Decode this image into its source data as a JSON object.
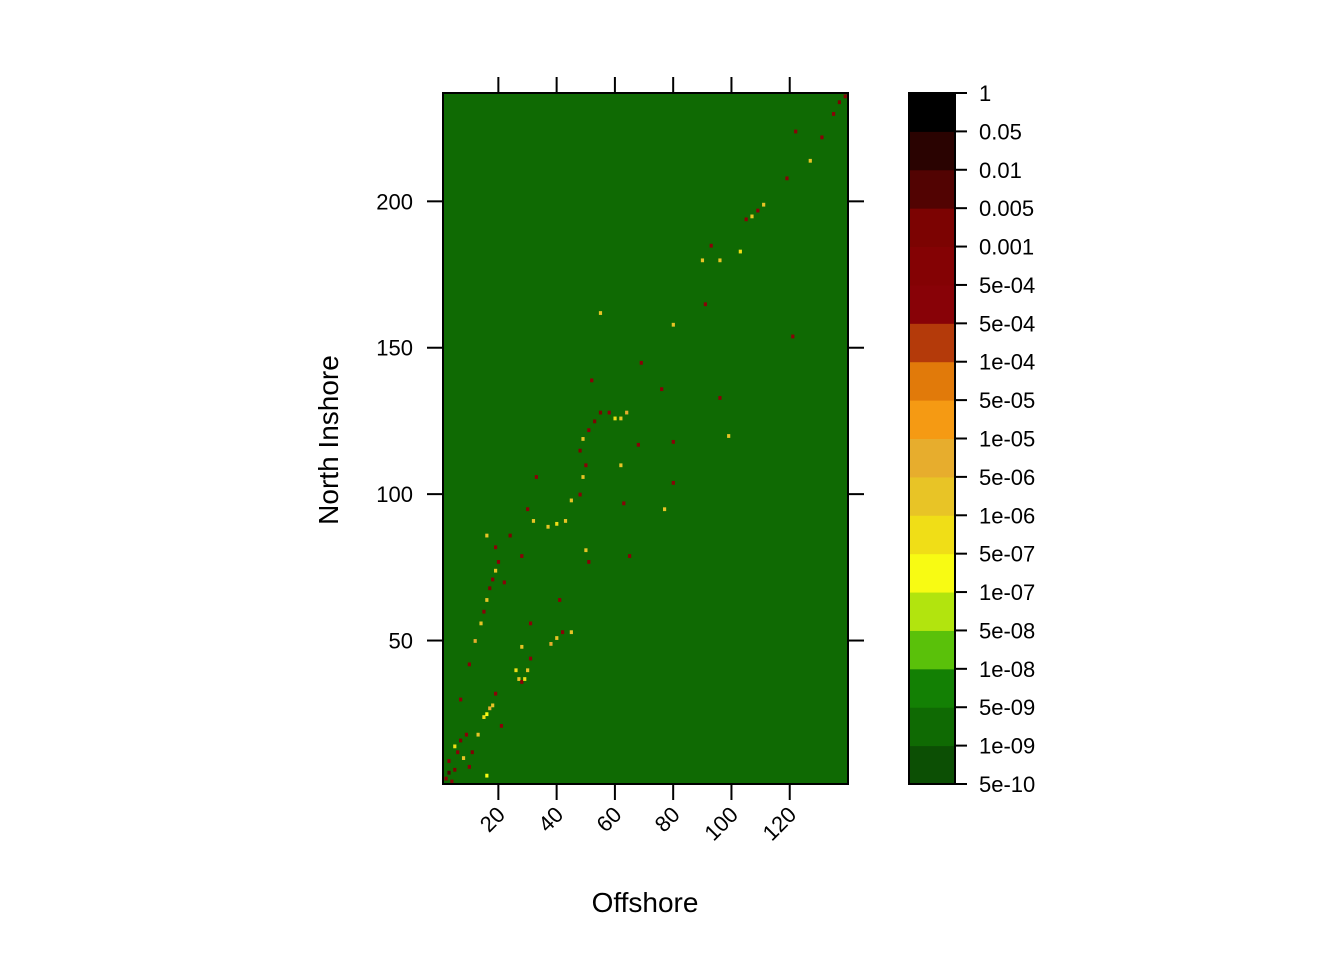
{
  "chart_data": {
    "type": "heatmap",
    "title": "",
    "xlabel": "Offshore",
    "ylabel": "North Inshore",
    "xlim": [
      1,
      140
    ],
    "ylim": [
      1,
      237
    ],
    "x_ticks": [
      20,
      40,
      60,
      80,
      100,
      120
    ],
    "x_tick_labels": [
      "20",
      "40",
      "60",
      "80",
      "100",
      "120"
    ],
    "y_ticks": [
      50,
      100,
      150,
      200
    ],
    "y_tick_labels": [
      "50",
      "100",
      "150",
      "200"
    ],
    "background_value": "1e-09",
    "colorbar": {
      "placement": "right",
      "bins": [
        {
          "color": "#0c4f04"
        },
        {
          "color": "#0f6a03"
        },
        {
          "color": "#138004"
        },
        {
          "color": "#5ac10a"
        },
        {
          "color": "#b2e40e"
        },
        {
          "color": "#f8fb13"
        },
        {
          "color": "#f0de17"
        },
        {
          "color": "#e8c426"
        },
        {
          "color": "#e7ad2d"
        },
        {
          "color": "#f59a13"
        },
        {
          "color": "#e17a0a"
        },
        {
          "color": "#b43a0a"
        },
        {
          "color": "#880207"
        },
        {
          "color": "#840204"
        },
        {
          "color": "#7c0302"
        },
        {
          "color": "#520302"
        },
        {
          "color": "#2a0301"
        },
        {
          "color": "#000000"
        }
      ],
      "labels": [
        "5e-10",
        "1e-09",
        "5e-09",
        "1e-08",
        "5e-08",
        "1e-07",
        "5e-07",
        "1e-06",
        "5e-06",
        "1e-05",
        "5e-05",
        "1e-04",
        "5e-04",
        "5e-04",
        "0.001",
        "0.005",
        "0.01",
        "0.05",
        "1"
      ]
    },
    "hotspots": [
      {
        "x": 2,
        "y": 3,
        "value": "5e-04"
      },
      {
        "x": 3,
        "y": 5,
        "value": "0.005"
      },
      {
        "x": 4,
        "y": 2,
        "value": "5e-04"
      },
      {
        "x": 5,
        "y": 6,
        "value": "0.001"
      },
      {
        "x": 3,
        "y": 9,
        "value": "5e-04"
      },
      {
        "x": 6,
        "y": 12,
        "value": "5e-04"
      },
      {
        "x": 7,
        "y": 16,
        "value": "0.001"
      },
      {
        "x": 5,
        "y": 14,
        "value": "5e-07"
      },
      {
        "x": 9,
        "y": 18,
        "value": "5e-04"
      },
      {
        "x": 8,
        "y": 10,
        "value": "1e-06"
      },
      {
        "x": 10,
        "y": 7,
        "value": "5e-04"
      },
      {
        "x": 11,
        "y": 12,
        "value": "0.001"
      },
      {
        "x": 7,
        "y": 30,
        "value": "5e-04"
      },
      {
        "x": 13,
        "y": 18,
        "value": "1e-06"
      },
      {
        "x": 15,
        "y": 24,
        "value": "5e-07"
      },
      {
        "x": 16,
        "y": 25,
        "value": "1e-07"
      },
      {
        "x": 17,
        "y": 27,
        "value": "5e-06"
      },
      {
        "x": 18,
        "y": 28,
        "value": "1e-06"
      },
      {
        "x": 19,
        "y": 32,
        "value": "5e-04"
      },
      {
        "x": 16,
        "y": 4,
        "value": "1e-07"
      },
      {
        "x": 21,
        "y": 21,
        "value": "5e-04"
      },
      {
        "x": 10,
        "y": 42,
        "value": "5e-04"
      },
      {
        "x": 12,
        "y": 50,
        "value": "5e-06"
      },
      {
        "x": 14,
        "y": 56,
        "value": "1e-06"
      },
      {
        "x": 15,
        "y": 60,
        "value": "5e-04"
      },
      {
        "x": 16,
        "y": 64,
        "value": "1e-06"
      },
      {
        "x": 17,
        "y": 68,
        "value": "0.001"
      },
      {
        "x": 18,
        "y": 71,
        "value": "5e-04"
      },
      {
        "x": 19,
        "y": 74,
        "value": "1e-06"
      },
      {
        "x": 20,
        "y": 77,
        "value": "5e-04"
      },
      {
        "x": 22,
        "y": 70,
        "value": "5e-04"
      },
      {
        "x": 16,
        "y": 86,
        "value": "1e-06"
      },
      {
        "x": 19,
        "y": 82,
        "value": "5e-04"
      },
      {
        "x": 24,
        "y": 86,
        "value": "0.001"
      },
      {
        "x": 26,
        "y": 40,
        "value": "5e-07"
      },
      {
        "x": 27,
        "y": 37,
        "value": "1e-06"
      },
      {
        "x": 28,
        "y": 36,
        "value": "5e-04"
      },
      {
        "x": 29,
        "y": 37,
        "value": "5e-07"
      },
      {
        "x": 30,
        "y": 40,
        "value": "1e-06"
      },
      {
        "x": 31,
        "y": 44,
        "value": "5e-04"
      },
      {
        "x": 28,
        "y": 48,
        "value": "1e-06"
      },
      {
        "x": 31,
        "y": 56,
        "value": "5e-04"
      },
      {
        "x": 28,
        "y": 79,
        "value": "5e-04"
      },
      {
        "x": 30,
        "y": 95,
        "value": "5e-04"
      },
      {
        "x": 32,
        "y": 91,
        "value": "1e-06"
      },
      {
        "x": 33,
        "y": 106,
        "value": "5e-04"
      },
      {
        "x": 37,
        "y": 89,
        "value": "1e-06"
      },
      {
        "x": 40,
        "y": 90,
        "value": "5e-07"
      },
      {
        "x": 43,
        "y": 91,
        "value": "1e-06"
      },
      {
        "x": 38,
        "y": 49,
        "value": "5e-06"
      },
      {
        "x": 40,
        "y": 51,
        "value": "1e-06"
      },
      {
        "x": 42,
        "y": 53,
        "value": "5e-04"
      },
      {
        "x": 45,
        "y": 53,
        "value": "1e-06"
      },
      {
        "x": 41,
        "y": 64,
        "value": "5e-04"
      },
      {
        "x": 45,
        "y": 98,
        "value": "1e-06"
      },
      {
        "x": 48,
        "y": 100,
        "value": "5e-04"
      },
      {
        "x": 50,
        "y": 81,
        "value": "1e-06"
      },
      {
        "x": 51,
        "y": 77,
        "value": "5e-04"
      },
      {
        "x": 49,
        "y": 106,
        "value": "1e-06"
      },
      {
        "x": 50,
        "y": 110,
        "value": "5e-04"
      },
      {
        "x": 48,
        "y": 115,
        "value": "0.001"
      },
      {
        "x": 49,
        "y": 119,
        "value": "1e-06"
      },
      {
        "x": 51,
        "y": 122,
        "value": "5e-04"
      },
      {
        "x": 53,
        "y": 125,
        "value": "0.001"
      },
      {
        "x": 55,
        "y": 128,
        "value": "0.001"
      },
      {
        "x": 58,
        "y": 128,
        "value": "5e-04"
      },
      {
        "x": 60,
        "y": 126,
        "value": "5e-07"
      },
      {
        "x": 62,
        "y": 126,
        "value": "1e-06"
      },
      {
        "x": 64,
        "y": 128,
        "value": "5e-06"
      },
      {
        "x": 52,
        "y": 139,
        "value": "5e-04"
      },
      {
        "x": 62,
        "y": 110,
        "value": "1e-06"
      },
      {
        "x": 68,
        "y": 117,
        "value": "5e-04"
      },
      {
        "x": 63,
        "y": 97,
        "value": "5e-04"
      },
      {
        "x": 65,
        "y": 79,
        "value": "5e-04"
      },
      {
        "x": 55,
        "y": 162,
        "value": "1e-06"
      },
      {
        "x": 69,
        "y": 145,
        "value": "5e-04"
      },
      {
        "x": 76,
        "y": 136,
        "value": "5e-04"
      },
      {
        "x": 80,
        "y": 158,
        "value": "1e-06"
      },
      {
        "x": 80,
        "y": 118,
        "value": "5e-04"
      },
      {
        "x": 80,
        "y": 104,
        "value": "5e-04"
      },
      {
        "x": 77,
        "y": 95,
        "value": "1e-06"
      },
      {
        "x": 90,
        "y": 180,
        "value": "1e-06"
      },
      {
        "x": 93,
        "y": 185,
        "value": "5e-04"
      },
      {
        "x": 96,
        "y": 180,
        "value": "1e-06"
      },
      {
        "x": 91,
        "y": 165,
        "value": "5e-04"
      },
      {
        "x": 96,
        "y": 133,
        "value": "5e-04"
      },
      {
        "x": 99,
        "y": 120,
        "value": "1e-06"
      },
      {
        "x": 103,
        "y": 183,
        "value": "5e-07"
      },
      {
        "x": 105,
        "y": 194,
        "value": "5e-04"
      },
      {
        "x": 107,
        "y": 195,
        "value": "1e-06"
      },
      {
        "x": 109,
        "y": 197,
        "value": "5e-04"
      },
      {
        "x": 111,
        "y": 199,
        "value": "1e-06"
      },
      {
        "x": 119,
        "y": 208,
        "value": "5e-04"
      },
      {
        "x": 121,
        "y": 154,
        "value": "5e-04"
      },
      {
        "x": 122,
        "y": 224,
        "value": "5e-04"
      },
      {
        "x": 127,
        "y": 214,
        "value": "1e-06"
      },
      {
        "x": 131,
        "y": 222,
        "value": "5e-04"
      },
      {
        "x": 135,
        "y": 230,
        "value": "5e-04"
      },
      {
        "x": 137,
        "y": 234,
        "value": "0.001"
      },
      {
        "x": 139,
        "y": 236,
        "value": "5e-04"
      }
    ]
  }
}
